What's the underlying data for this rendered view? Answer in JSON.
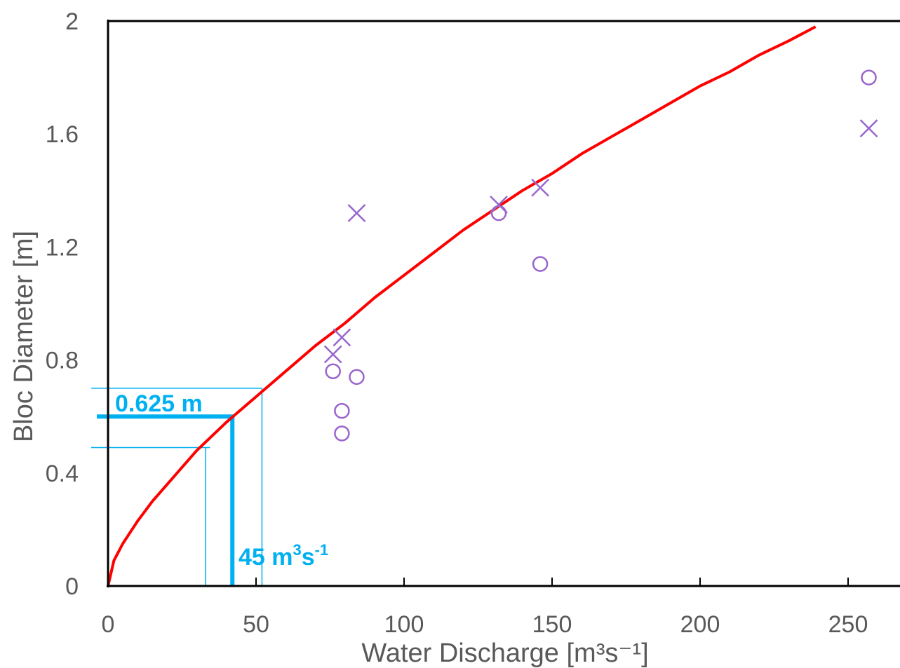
{
  "chart_data": {
    "type": "scatter",
    "xlabel": "Water Discharge [m³s⁻¹]",
    "ylabel": "Bloc Diameter  [m]",
    "xlim": [
      0,
      260
    ],
    "ylim": [
      0,
      2
    ],
    "x_ticks": [
      "0",
      "50",
      "100",
      "150",
      "200",
      "250"
    ],
    "y_ticks": [
      "0",
      "0.4",
      "0.8",
      "1.2",
      "1.6",
      "2"
    ],
    "grid": false,
    "legend": "none",
    "series": [
      {
        "kind": "line",
        "color": "#ff0000",
        "x": [
          0,
          2,
          5,
          10,
          15,
          20,
          25,
          30,
          35,
          40,
          45,
          50,
          60,
          70,
          80,
          90,
          100,
          110,
          120,
          130,
          140,
          150,
          160,
          170,
          180,
          190,
          200,
          210,
          220,
          230,
          239
        ],
        "y": [
          0,
          0.09,
          0.15,
          0.23,
          0.3,
          0.36,
          0.42,
          0.48,
          0.53,
          0.58,
          0.625,
          0.67,
          0.76,
          0.85,
          0.93,
          1.02,
          1.1,
          1.18,
          1.26,
          1.33,
          1.4,
          1.46,
          1.53,
          1.59,
          1.65,
          1.71,
          1.77,
          1.82,
          1.88,
          1.93,
          1.98
        ]
      },
      {
        "kind": "scatter",
        "marker": "x",
        "color": "#9966cc",
        "x": [
          76,
          79,
          84,
          132,
          146,
          257
        ],
        "y": [
          0.82,
          0.88,
          1.32,
          1.35,
          1.41,
          1.62
        ]
      },
      {
        "kind": "scatter",
        "marker": "circle",
        "color": "#9966cc",
        "x": [
          76,
          79,
          79,
          84,
          132,
          146,
          257
        ],
        "y": [
          0.76,
          0.62,
          0.54,
          0.74,
          1.32,
          1.14,
          1.8
        ]
      }
    ],
    "annotations": {
      "color": "#00b0f0",
      "diameter_label": "0.625 m",
      "discharge_label_base": "45 m",
      "discharge_label_sup1": "3",
      "discharge_label_mid": "s",
      "discharge_label_sup2": "-1",
      "marked_point": {
        "x": 42,
        "y": 0.6
      },
      "upper_bound": {
        "x": 52,
        "y": 0.7
      },
      "lower_bound": {
        "x": 33,
        "y": 0.49
      }
    }
  }
}
